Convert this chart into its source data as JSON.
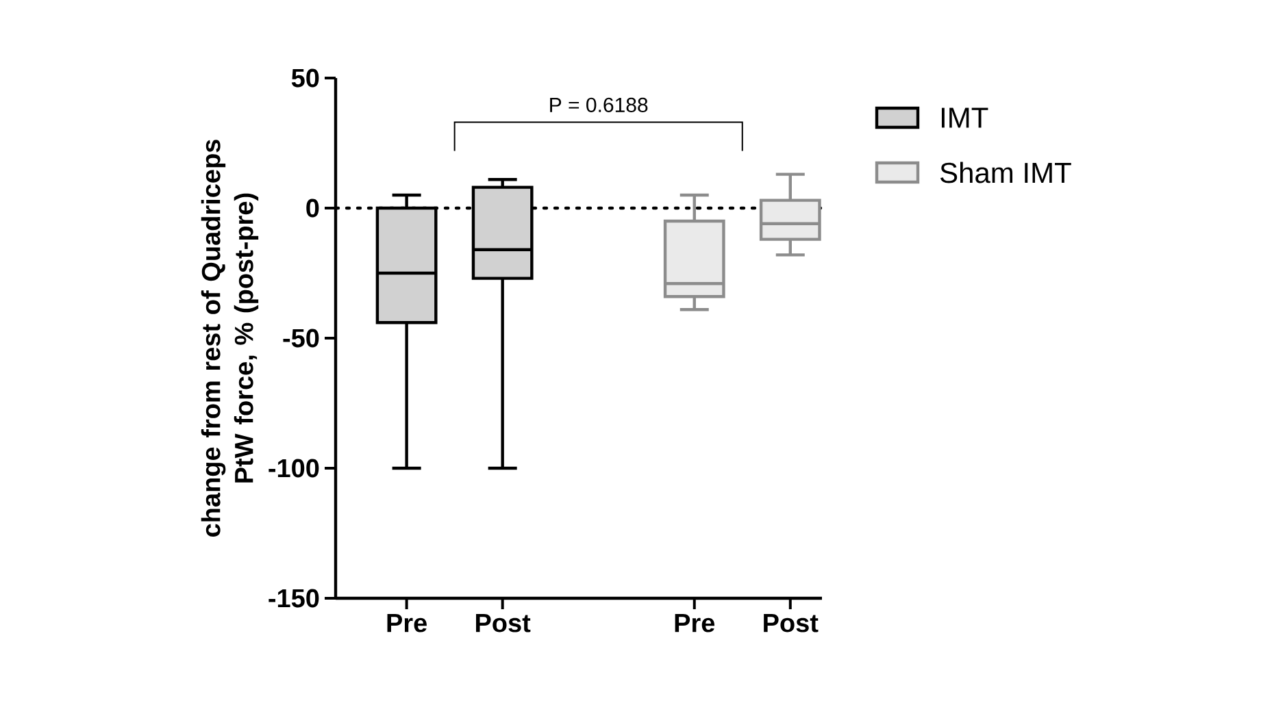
{
  "chart_data": {
    "type": "box",
    "ylabel": "change from rest of Quadriceps PtW force, % (post-pre)",
    "categories": [
      "Pre",
      "Post",
      null,
      "Pre",
      "Post"
    ],
    "series": [
      {
        "name": "IMT",
        "color": "#000000",
        "boxes": [
          {
            "low": -100,
            "q1": -44,
            "median": -25,
            "q3": 0,
            "high": 5
          },
          {
            "low": -100,
            "q1": -27,
            "median": -16,
            "q3": 8,
            "high": 11
          },
          null,
          null,
          null
        ]
      },
      {
        "name": "Sham IMT",
        "color": "#8c8c8c",
        "boxes": [
          null,
          null,
          null,
          {
            "low": -39,
            "q1": -34,
            "median": -29,
            "q3": -5,
            "high": 5
          },
          {
            "low": -18,
            "q1": -12,
            "median": -6,
            "q3": 3,
            "high": 13
          }
        ]
      }
    ],
    "ylim": [
      -150,
      50
    ],
    "yticks": [
      -150,
      -100,
      -50,
      0,
      50
    ],
    "ref_lines": [
      {
        "axis": "y",
        "value": 0,
        "line_style": "dotted",
        "color": "#000000"
      }
    ],
    "annotations": [
      "P = 0.6188"
    ],
    "legend": "right"
  }
}
